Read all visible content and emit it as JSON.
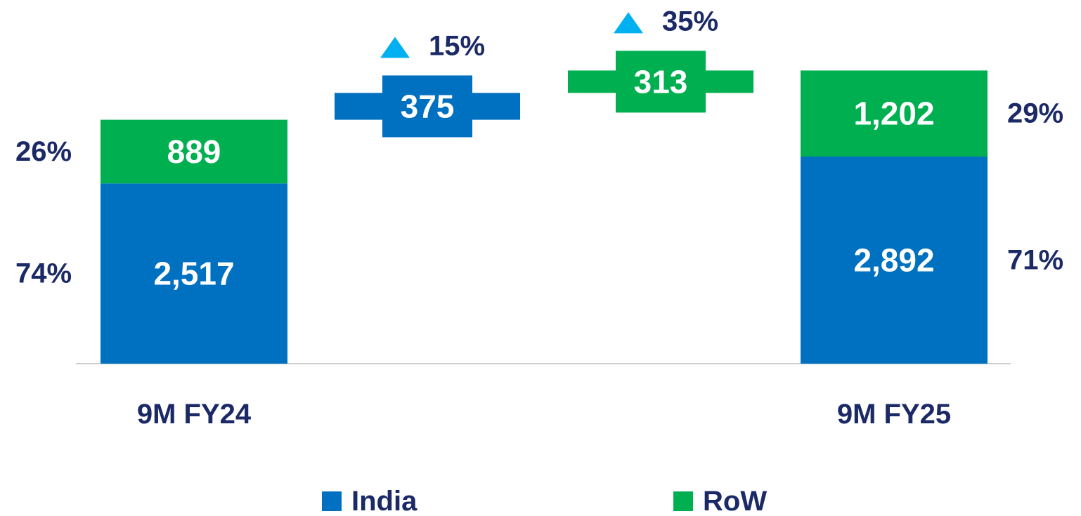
{
  "chart_data": {
    "type": "waterfall",
    "categories": [
      "9M FY24",
      null,
      null,
      "9M FY25"
    ],
    "ylim": [
      0,
      5000
    ],
    "series": [
      {
        "name": "India",
        "color": "#0070c0",
        "values": [
          2517,
          375,
          null,
          2892
        ],
        "value_labels": [
          "2,517",
          "375",
          null,
          "2,892"
        ],
        "shares": [
          {
            "value": 74,
            "label": "74%"
          },
          null,
          null,
          {
            "value": 71,
            "label": "71%"
          }
        ],
        "growth": {
          "value": 15,
          "label": "15%"
        }
      },
      {
        "name": "RoW",
        "color": "#00b050",
        "values": [
          889,
          null,
          313,
          1202
        ],
        "value_labels": [
          "889",
          null,
          "313",
          "1,202"
        ],
        "shares": [
          {
            "value": 26,
            "label": "26%"
          },
          null,
          null,
          {
            "value": 29,
            "label": "29%"
          }
        ],
        "growth": {
          "value": 35,
          "label": "35%"
        }
      }
    ]
  }
}
